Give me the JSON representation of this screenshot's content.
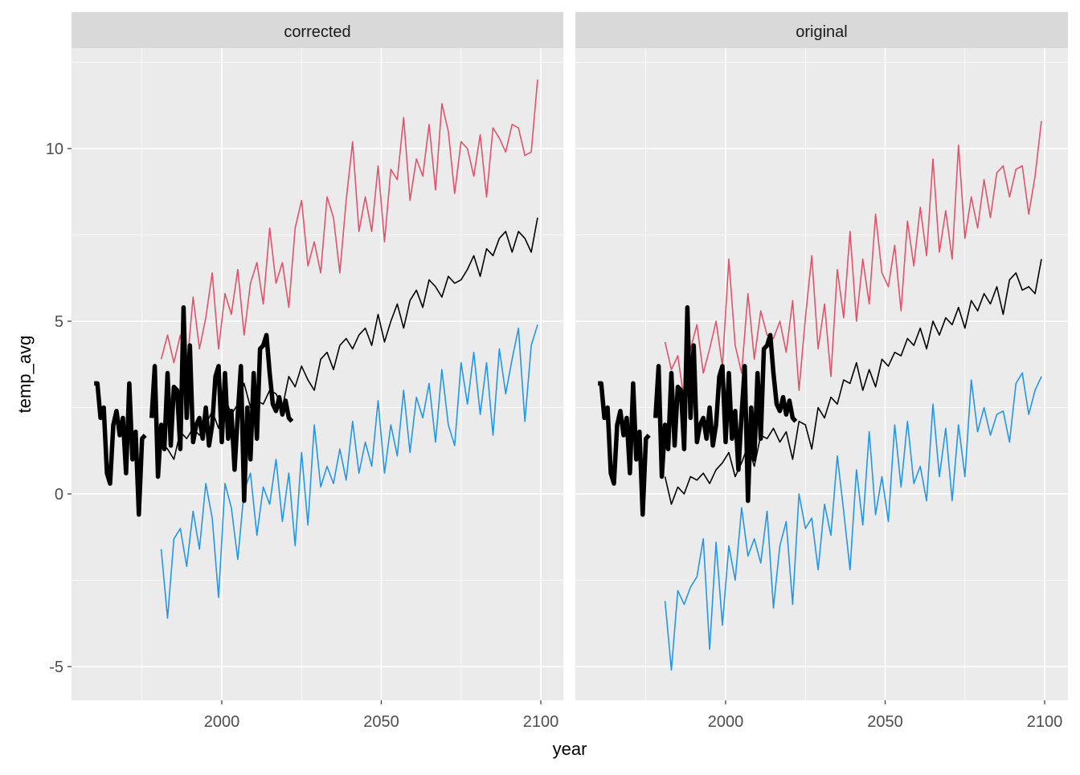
{
  "chart_data": {
    "type": "line",
    "xlabel": "year",
    "ylabel": "temp_avg",
    "xlim": [
      1953,
      2107
    ],
    "ylim": [
      -6,
      13
    ],
    "x_ticks": [
      2000,
      2050,
      2100
    ],
    "x_tick_labels": [
      "2000",
      "2050",
      "2100"
    ],
    "y_ticks": [
      -5,
      0,
      5,
      10
    ],
    "y_tick_labels": [
      "-5",
      "0",
      "5",
      "10"
    ],
    "grid": true,
    "legend": "none",
    "colors": {
      "observed": "#000000",
      "model_mean": "#000000",
      "upper": "#DF536B",
      "lower": "#2297E6"
    },
    "observed": {
      "start_year": 1960,
      "values": [
        3.2,
        3.2,
        2.2,
        2.5,
        0.6,
        0.3,
        2.0,
        2.4,
        1.7,
        2.2,
        0.6,
        3.2,
        1.0,
        1.8,
        -0.6,
        1.6,
        1.7,
        null,
        2.2,
        3.7,
        0.5,
        2.0,
        1.3,
        3.5,
        1.4,
        3.1,
        3.0,
        1.3,
        5.4,
        2.2,
        4.3,
        1.5,
        2.0,
        2.2,
        1.6,
        2.5,
        1.4,
        2.0,
        3.4,
        3.7,
        1.5,
        3.5,
        1.6,
        2.4,
        0.7,
        2.3,
        3.7,
        -0.2,
        2.5,
        1.0,
        3.5,
        1.6,
        4.2,
        4.3,
        4.6,
        3.5,
        2.6,
        2.4,
        2.8,
        2.3,
        2.7,
        2.2,
        2.1
      ]
    },
    "model_start_year": 1981,
    "model_step_years": 2,
    "facets": [
      {
        "label": "corrected",
        "series": [
          {
            "name": "upper",
            "values": [
              3.9,
              4.6,
              3.8,
              4.6,
              3.6,
              5.7,
              4.2,
              5.1,
              6.4,
              4.2,
              5.8,
              5.2,
              6.5,
              4.6,
              6.1,
              6.7,
              5.5,
              7.7,
              6.1,
              6.7,
              5.4,
              7.7,
              8.5,
              6.6,
              7.3,
              6.4,
              8.6,
              8.0,
              6.4,
              8.5,
              10.2,
              7.6,
              8.6,
              7.6,
              9.5,
              7.3,
              9.4,
              9.1,
              10.9,
              8.5,
              9.7,
              9.2,
              10.7,
              8.8,
              11.3,
              10.5,
              8.7,
              10.2,
              10.0,
              9.2,
              10.4,
              8.6,
              10.6,
              10.3,
              9.9,
              10.7,
              10.6,
              9.8,
              9.9,
              12.0
            ]
          },
          {
            "name": "model_mean",
            "values": [
              1.5,
              1.3,
              1.0,
              1.8,
              1.6,
              1.9,
              1.7,
              2.0,
              2.4,
              1.9,
              2.8,
              2.3,
              2.6,
              3.2,
              2.5,
              2.7,
              2.6,
              3.0,
              2.9,
              2.5,
              3.4,
              3.1,
              3.7,
              3.3,
              3.0,
              3.9,
              4.1,
              3.6,
              4.3,
              4.5,
              4.2,
              4.6,
              4.8,
              4.3,
              5.2,
              4.4,
              5.0,
              5.5,
              4.8,
              5.6,
              5.9,
              5.4,
              6.2,
              6.0,
              5.7,
              6.3,
              6.1,
              6.2,
              6.5,
              6.9,
              6.3,
              7.1,
              6.9,
              7.4,
              7.6,
              7.0,
              7.6,
              7.4,
              7.0,
              8.0
            ]
          },
          {
            "name": "lower",
            "values": [
              -1.6,
              -3.6,
              -1.3,
              -1.0,
              -2.1,
              -0.5,
              -1.6,
              0.3,
              -0.7,
              -3.0,
              0.3,
              -0.4,
              -1.9,
              0.1,
              0.6,
              -1.2,
              0.2,
              -0.3,
              1.0,
              -0.8,
              0.6,
              -1.5,
              1.2,
              -0.9,
              2.0,
              0.2,
              0.8,
              0.3,
              1.3,
              0.4,
              2.1,
              0.6,
              1.5,
              0.8,
              2.7,
              0.6,
              2.0,
              1.1,
              3.0,
              1.2,
              2.8,
              2.2,
              3.2,
              1.5,
              3.6,
              2.0,
              1.4,
              3.8,
              2.6,
              4.1,
              2.3,
              3.8,
              1.7,
              4.2,
              2.9,
              3.9,
              4.8,
              2.1,
              4.3,
              4.9
            ]
          }
        ]
      },
      {
        "label": "original",
        "series": [
          {
            "name": "upper",
            "values": [
              4.4,
              3.6,
              4.0,
              2.7,
              4.2,
              4.9,
              3.5,
              4.2,
              5.0,
              3.7,
              6.8,
              4.3,
              3.5,
              5.8,
              3.9,
              5.3,
              4.6,
              4.5,
              5.0,
              4.1,
              5.6,
              3.0,
              5.1,
              6.9,
              4.2,
              5.5,
              3.4,
              6.5,
              5.1,
              7.6,
              5.0,
              6.8,
              5.5,
              8.1,
              6.4,
              6.0,
              7.2,
              5.3,
              7.9,
              6.6,
              8.3,
              6.9,
              9.7,
              7.0,
              8.2,
              6.8,
              10.1,
              7.4,
              8.6,
              7.7,
              9.1,
              8.0,
              9.3,
              9.5,
              8.6,
              9.4,
              9.5,
              8.1,
              9.2,
              10.8
            ]
          },
          {
            "name": "model_mean",
            "values": [
              0.5,
              -0.3,
              0.2,
              0.0,
              0.5,
              0.4,
              0.6,
              0.3,
              0.7,
              0.9,
              1.2,
              0.5,
              0.9,
              1.4,
              0.8,
              1.7,
              1.6,
              1.9,
              1.5,
              1.8,
              1.0,
              2.1,
              2.0,
              1.3,
              2.5,
              2.2,
              2.8,
              2.6,
              3.3,
              3.2,
              3.8,
              3.0,
              3.6,
              3.1,
              3.9,
              3.7,
              4.1,
              4.0,
              4.5,
              4.3,
              4.8,
              4.2,
              5.0,
              4.6,
              5.1,
              4.9,
              5.4,
              4.8,
              5.6,
              5.3,
              5.8,
              5.5,
              6.0,
              5.2,
              6.2,
              6.4,
              5.9,
              6.0,
              5.8,
              6.8
            ]
          },
          {
            "name": "lower",
            "values": [
              -3.1,
              -5.1,
              -2.8,
              -3.2,
              -2.7,
              -2.4,
              -1.3,
              -4.5,
              -1.4,
              -3.8,
              -1.5,
              -2.5,
              -0.4,
              -1.8,
              -1.3,
              -2.0,
              -0.5,
              -3.3,
              -1.5,
              -0.8,
              -3.2,
              0.0,
              -1.0,
              -0.7,
              -2.2,
              -0.3,
              -1.2,
              1.1,
              -0.5,
              -2.2,
              0.7,
              -0.9,
              1.8,
              -0.6,
              0.5,
              -0.8,
              2.0,
              0.2,
              2.1,
              0.3,
              0.8,
              -0.2,
              2.6,
              0.5,
              1.9,
              -0.2,
              2.0,
              0.5,
              3.3,
              1.8,
              2.5,
              1.7,
              2.3,
              2.4,
              1.5,
              3.2,
              3.5,
              2.3,
              3.0,
              3.4
            ]
          }
        ]
      }
    ]
  }
}
